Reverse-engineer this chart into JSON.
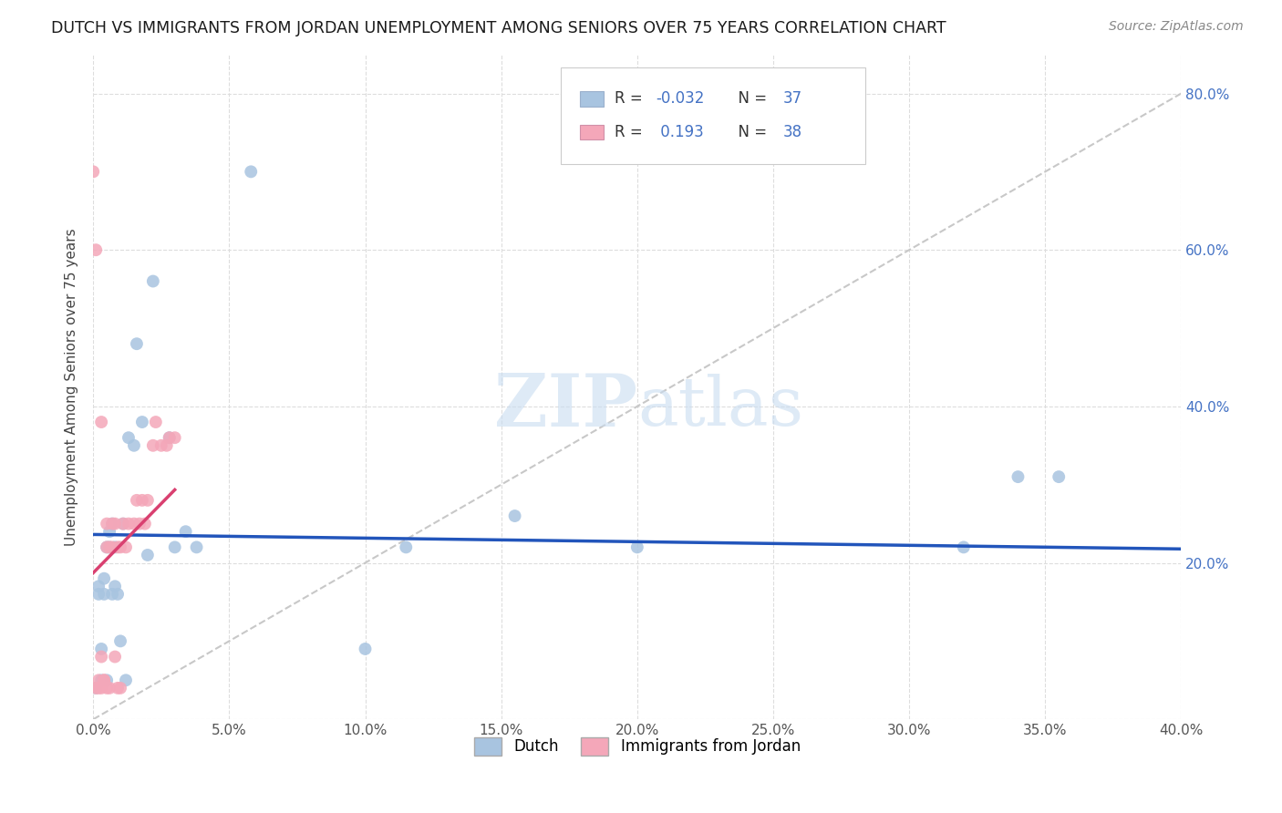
{
  "title": "DUTCH VS IMMIGRANTS FROM JORDAN UNEMPLOYMENT AMONG SENIORS OVER 75 YEARS CORRELATION CHART",
  "source": "Source: ZipAtlas.com",
  "ylabel": "Unemployment Among Seniors over 75 years",
  "xlim": [
    0.0,
    0.4
  ],
  "ylim": [
    0.0,
    0.85
  ],
  "x_ticks": [
    0.0,
    0.05,
    0.1,
    0.15,
    0.2,
    0.25,
    0.3,
    0.35,
    0.4
  ],
  "y_ticks": [
    0.0,
    0.2,
    0.4,
    0.6,
    0.8
  ],
  "dutch_color": "#a8c4e0",
  "dutch_edge_color": "#a8c4e0",
  "jordan_color": "#f4a7b9",
  "jordan_edge_color": "#f4a7b9",
  "dutch_line_color": "#2255bb",
  "jordan_line_color": "#d94070",
  "diagonal_color": "#c8c8c8",
  "R_dutch": -0.032,
  "N_dutch": 37,
  "R_jordan": 0.193,
  "N_jordan": 38,
  "legend_label_dutch": "Dutch",
  "legend_label_jordan": "Immigrants from Jordan",
  "dutch_x": [
    0.001,
    0.002,
    0.002,
    0.003,
    0.003,
    0.004,
    0.004,
    0.005,
    0.005,
    0.006,
    0.006,
    0.007,
    0.007,
    0.008,
    0.008,
    0.009,
    0.01,
    0.011,
    0.012,
    0.013,
    0.015,
    0.016,
    0.018,
    0.02,
    0.022,
    0.028,
    0.03,
    0.034,
    0.038,
    0.058,
    0.1,
    0.115,
    0.155,
    0.2,
    0.32,
    0.34,
    0.355
  ],
  "dutch_y": [
    0.04,
    0.17,
    0.16,
    0.09,
    0.05,
    0.16,
    0.18,
    0.22,
    0.05,
    0.24,
    0.22,
    0.25,
    0.16,
    0.17,
    0.22,
    0.16,
    0.1,
    0.25,
    0.05,
    0.36,
    0.35,
    0.48,
    0.38,
    0.21,
    0.56,
    0.36,
    0.22,
    0.24,
    0.22,
    0.7,
    0.09,
    0.22,
    0.26,
    0.22,
    0.22,
    0.31,
    0.31
  ],
  "jordan_x": [
    0.0,
    0.001,
    0.001,
    0.002,
    0.002,
    0.003,
    0.003,
    0.003,
    0.004,
    0.004,
    0.005,
    0.005,
    0.005,
    0.006,
    0.006,
    0.007,
    0.007,
    0.008,
    0.008,
    0.009,
    0.009,
    0.01,
    0.01,
    0.011,
    0.012,
    0.013,
    0.015,
    0.016,
    0.017,
    0.018,
    0.019,
    0.02,
    0.022,
    0.023,
    0.025,
    0.027,
    0.028,
    0.03
  ],
  "jordan_y": [
    0.7,
    0.6,
    0.04,
    0.05,
    0.04,
    0.38,
    0.08,
    0.04,
    0.05,
    0.05,
    0.25,
    0.22,
    0.04,
    0.22,
    0.04,
    0.25,
    0.22,
    0.25,
    0.08,
    0.22,
    0.04,
    0.22,
    0.04,
    0.25,
    0.22,
    0.25,
    0.25,
    0.28,
    0.25,
    0.28,
    0.25,
    0.28,
    0.35,
    0.38,
    0.35,
    0.35,
    0.36,
    0.36
  ],
  "watermark_zip": "ZIP",
  "watermark_atlas": "atlas",
  "background_color": "#ffffff",
  "grid_color": "#dddddd",
  "marker_size": 100
}
